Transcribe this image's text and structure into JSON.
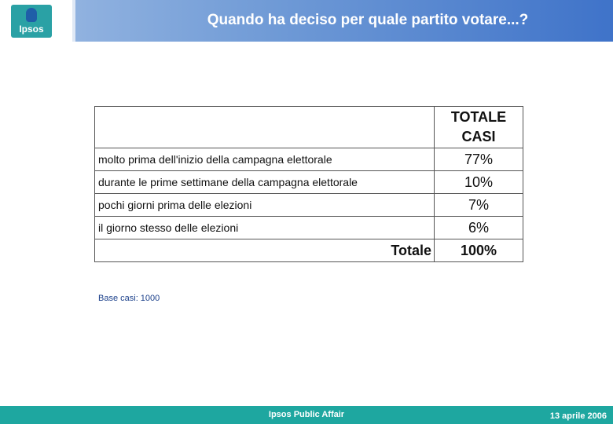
{
  "header": {
    "logo_text": "Ipsos",
    "title": "Quando ha deciso per quale partito votare...?"
  },
  "table": {
    "column_header_line1": "TOTALE",
    "column_header_line2": "CASI",
    "rows": [
      {
        "label": "molto prima dell'inizio della campagna elettorale",
        "value": "77%"
      },
      {
        "label": "durante le prime settimane della campagna elettorale",
        "value": "10%"
      },
      {
        "label": "pochi giorni prima delle elezioni",
        "value": "7%"
      },
      {
        "label": "il giorno stesso delle elezioni",
        "value": "6%"
      }
    ],
    "total_label": "Totale",
    "total_value": "100%"
  },
  "base_note": "Base casi: 1000",
  "footer": {
    "center": "Ipsos Public Affair",
    "date": "13 aprile 2006"
  },
  "colors": {
    "header_gradient_start": "#9dbbe3",
    "header_gradient_end": "#3f73c9",
    "footer": "#1ea7a0",
    "logo": "#2aa1a5"
  }
}
